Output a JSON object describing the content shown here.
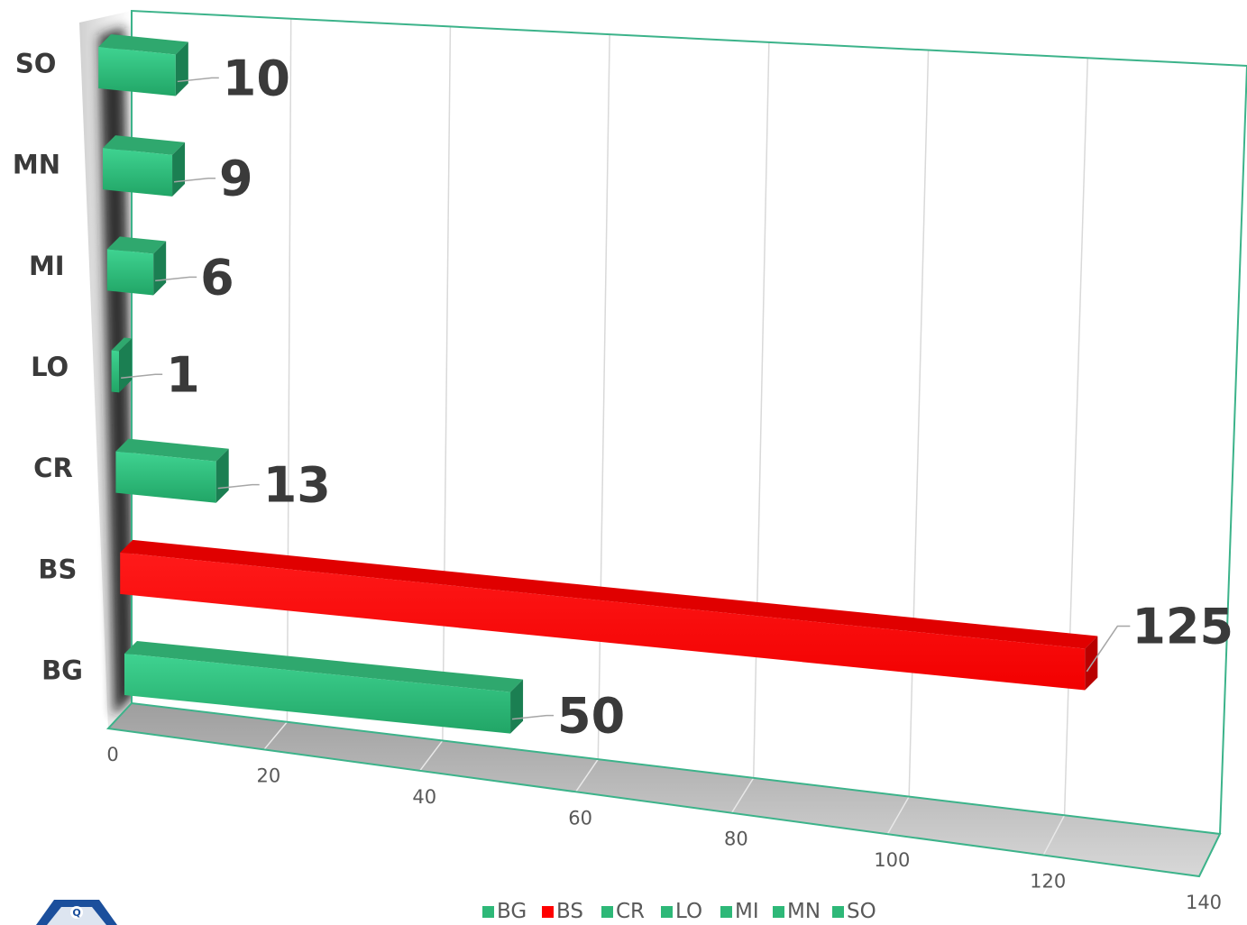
{
  "chart_data": {
    "type": "bar",
    "orientation": "horizontal",
    "three_d": true,
    "categories": [
      "BG",
      "BS",
      "CR",
      "LO",
      "MI",
      "MN",
      "SO"
    ],
    "values": [
      50,
      125,
      13,
      1,
      6,
      9,
      10
    ],
    "data_labels": [
      "50",
      "125",
      "13",
      "1",
      "6",
      "9",
      "10"
    ],
    "colors": [
      "#2eb878",
      "#ff0000",
      "#2eb878",
      "#2eb878",
      "#2eb878",
      "#2eb878",
      "#2eb878"
    ],
    "xlim": [
      0,
      140
    ],
    "xticks": [
      "0",
      "20",
      "40",
      "60",
      "80",
      "100",
      "120",
      "140"
    ],
    "grid": true,
    "legend": {
      "position": "bottom",
      "entries": [
        "BG",
        "BS",
        "CR",
        "LO",
        "MI",
        "MN",
        "SO"
      ]
    },
    "frame_color": "#3cb38a",
    "title": "",
    "xlabel": "",
    "ylabel": ""
  },
  "logo": {
    "letter": "Q"
  }
}
